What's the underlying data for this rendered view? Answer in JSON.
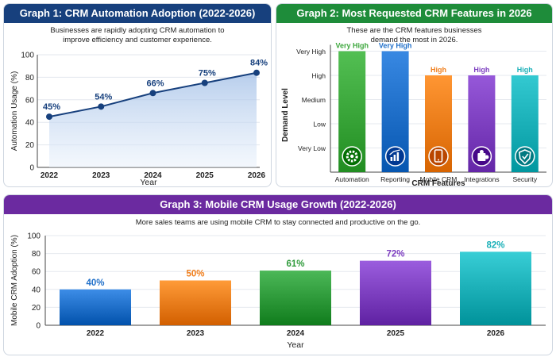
{
  "panel1": {
    "title": "Graph 1: CRM Automation Adoption (2022-2026)",
    "subtitle_line1": "Businesses are rapidly adopting CRM automation to",
    "subtitle_line2": "improve efficiency and customer experience."
  },
  "panel2": {
    "title": "Graph 2: Most Requested CRM Features in 2026",
    "subtitle_line1": "These are the CRM features businesses",
    "subtitle_line2": "demand the most in 2026."
  },
  "panel3": {
    "title": "Graph 3: Mobile CRM Usage Growth (2022-2026)",
    "subtitle": "More sales teams are using mobile CRM to stay connected and productive on the go."
  },
  "colors": {
    "header1": "#17407d",
    "header2": "#1e8c3a",
    "header3": "#6b2aa0",
    "line": "#17407d"
  },
  "chart_data": [
    {
      "type": "line",
      "title": "Graph 1: CRM Automation Adoption (2022-2026)",
      "xlabel": "Year",
      "ylabel": "Automation Usage (%)",
      "x": [
        "2022",
        "2023",
        "2024",
        "2025",
        "2026"
      ],
      "values": [
        45,
        54,
        66,
        75,
        84
      ],
      "data_labels": [
        "45%",
        "54%",
        "66%",
        "75%",
        "84%"
      ],
      "ylim": [
        0,
        100
      ],
      "yticks": [
        0,
        20,
        40,
        60,
        80,
        100
      ],
      "area_fill": true,
      "grid": true
    },
    {
      "type": "bar",
      "title": "Graph 2: Most Requested CRM Features in 2026",
      "xlabel": "CRM Features",
      "ylabel": "Demand Level",
      "levels": [
        "Very Low",
        "Low",
        "Medium",
        "High",
        "Very High"
      ],
      "categories": [
        "Automation",
        "Reporting",
        "Mobile CRM",
        "Integrations",
        "Security"
      ],
      "values": [
        5,
        5,
        4,
        4,
        4
      ],
      "data_labels": [
        "Very High",
        "Very High",
        "High",
        "High",
        "High"
      ],
      "colors": [
        "#3aa63a",
        "#1f6fc9",
        "#f07d1a",
        "#7d3fc0",
        "#1ab0b8"
      ],
      "icons": [
        "gear-icon",
        "chart-icon",
        "mobile-icon",
        "puzzle-icon",
        "shield-icon"
      ],
      "grid": true
    },
    {
      "type": "bar",
      "title": "Graph 3: Mobile CRM Usage Growth (2022-2026)",
      "xlabel": "Year",
      "ylabel": "Mobile CRM Adoption (%)",
      "categories": [
        "2022",
        "2023",
        "2024",
        "2025",
        "2026"
      ],
      "values": [
        40,
        50,
        61,
        72,
        82
      ],
      "data_labels": [
        "40%",
        "50%",
        "61%",
        "72%",
        "82%"
      ],
      "colors": [
        "#1f6fc9",
        "#f07d1a",
        "#2e9a3a",
        "#7d3fc0",
        "#1ab0b8"
      ],
      "ylim": [
        0,
        100
      ],
      "yticks": [
        0,
        20,
        40,
        60,
        80,
        100
      ],
      "grid": true
    }
  ]
}
